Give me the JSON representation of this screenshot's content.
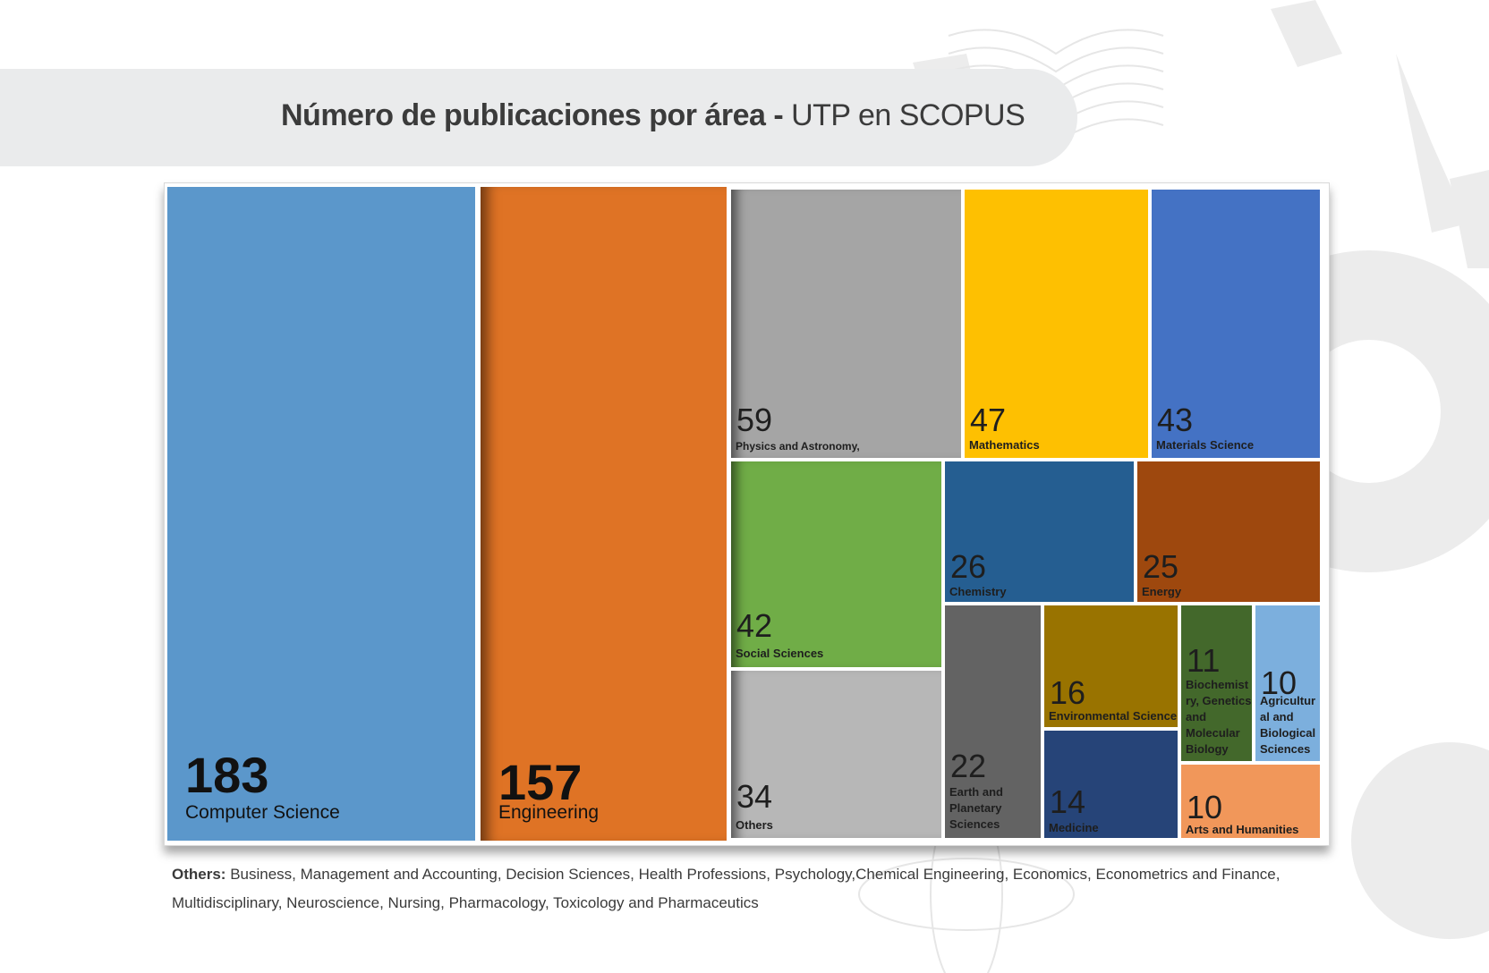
{
  "title": {
    "bold": "Número de publicaciones por área -",
    "regular": "UTP en SCOPUS"
  },
  "chart_data": {
    "type": "treemap",
    "title": "Número de publicaciones por área - UTP en SCOPUS",
    "items": [
      {
        "name": "Computer Science",
        "value": 183,
        "color": "#5b97cb"
      },
      {
        "name": "Engineering",
        "value": 157,
        "color": "#df7325"
      },
      {
        "name": "Physics and Astronomy,",
        "value": 59,
        "color": "#a5a5a5"
      },
      {
        "name": "Mathematics",
        "value": 47,
        "color": "#fec001"
      },
      {
        "name": "Materials Science",
        "value": 43,
        "color": "#4472c4"
      },
      {
        "name": "Social Sciences",
        "value": 42,
        "color": "#70ad47"
      },
      {
        "name": "Others",
        "value": 34,
        "color": "#b7b7b7"
      },
      {
        "name": "Chemistry",
        "value": 26,
        "color": "#255e91"
      },
      {
        "name": "Energy",
        "value": 25,
        "color": "#9e480e"
      },
      {
        "name": "Earth and Planetary Sciences",
        "value": 22,
        "color": "#636363"
      },
      {
        "name": "Environmental Science",
        "value": 16,
        "color": "#997300"
      },
      {
        "name": "Medicine",
        "value": 14,
        "color": "#264478"
      },
      {
        "name": "Biochemistry, Genetics and Molecular Biology",
        "value": 11,
        "color": "#43682b"
      },
      {
        "name": "Agricultural and Biological Sciences",
        "value": 10,
        "color": "#7cafdd"
      },
      {
        "name": "Arts and Humanities",
        "value": 10,
        "color": "#f1975a"
      }
    ]
  },
  "labels": {
    "cs": "Computer Science",
    "eng": "Engineering",
    "phys": "Physics and Astronomy,",
    "math": "Mathematics",
    "mat": "Materials Science",
    "soc": "Social Sciences",
    "oth": "Others",
    "chem": "Chemistry",
    "energy": "Energy",
    "earth_lines": [
      "Earth and",
      "Planetary",
      "Sciences"
    ],
    "env": "Environmental Science",
    "med": "Medicine",
    "bio_lines": [
      "Biochemist",
      "ry, Genetics",
      "and",
      "Molecular",
      "Biology"
    ],
    "agri_lines": [
      "Agricultur",
      "al and",
      "Biological",
      "Sciences"
    ],
    "arts": "Arts and Humanities"
  },
  "footnote": {
    "label": "Others:",
    "text": " Business, Management and Accounting, Decision Sciences, Health Professions, Psychology,Chemical Engineering, Economics, Econometrics and Finance, Multidisciplinary, Neuroscience, Nursing, Pharmacology, Toxicology and Pharmaceutics"
  }
}
